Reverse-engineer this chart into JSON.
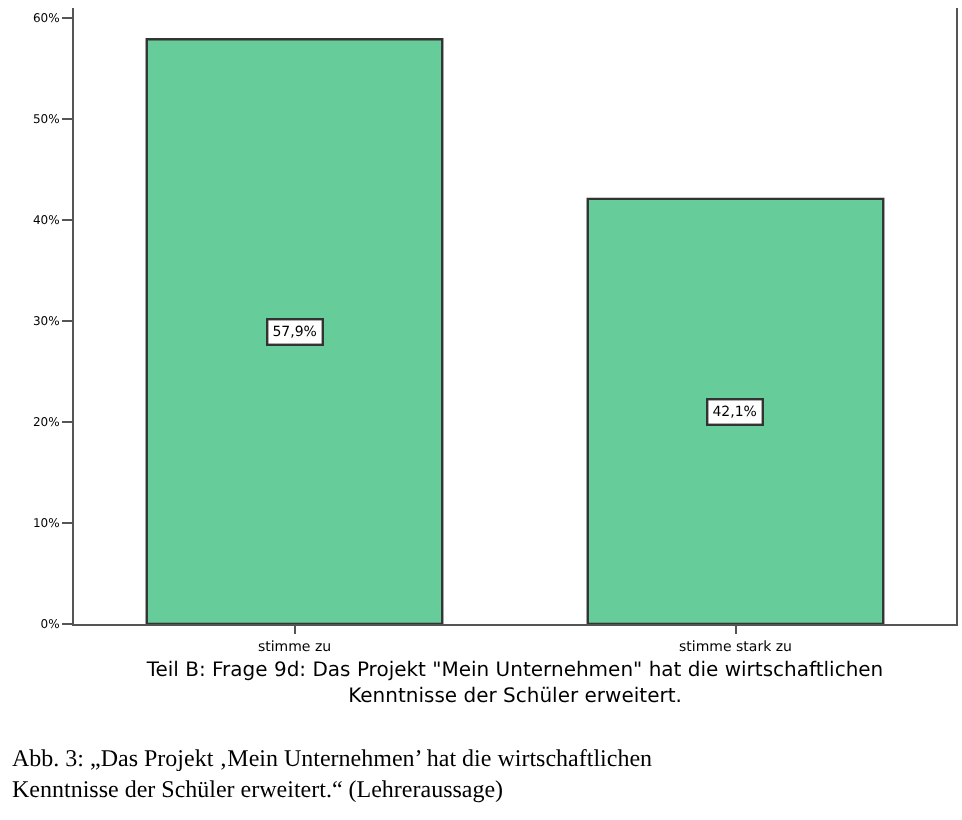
{
  "chart_data": {
    "type": "bar",
    "categories": [
      "stimme zu",
      "stimme stark zu"
    ],
    "values": [
      57.9,
      42.1
    ],
    "value_labels": [
      "57,9%",
      "42,1%"
    ],
    "color": "#66cc99",
    "xlabel": "Teil B: Frage 9d: Das Projekt \"Mein Unternehmen\" hat die wirtschaftlichen Kenntnisse der Schüler erweitert.",
    "ylim": [
      0,
      61
    ],
    "yticks": [
      {
        "value": 0,
        "label": "0%"
      },
      {
        "value": 10,
        "label": "10%"
      },
      {
        "value": 20,
        "label": "20%"
      },
      {
        "value": 30,
        "label": "30%"
      },
      {
        "value": 40,
        "label": "40%"
      },
      {
        "value": 50,
        "label": "50%"
      },
      {
        "value": 60,
        "label": "60%"
      }
    ],
    "legend": false,
    "annotations": [
      "Abb. 3: „Das Projekt ‚Mein Unternehmen’ hat die wirtschaftlichen Kenntnisse der Schüler erweitert.“ (Lehreraussage)"
    ]
  }
}
